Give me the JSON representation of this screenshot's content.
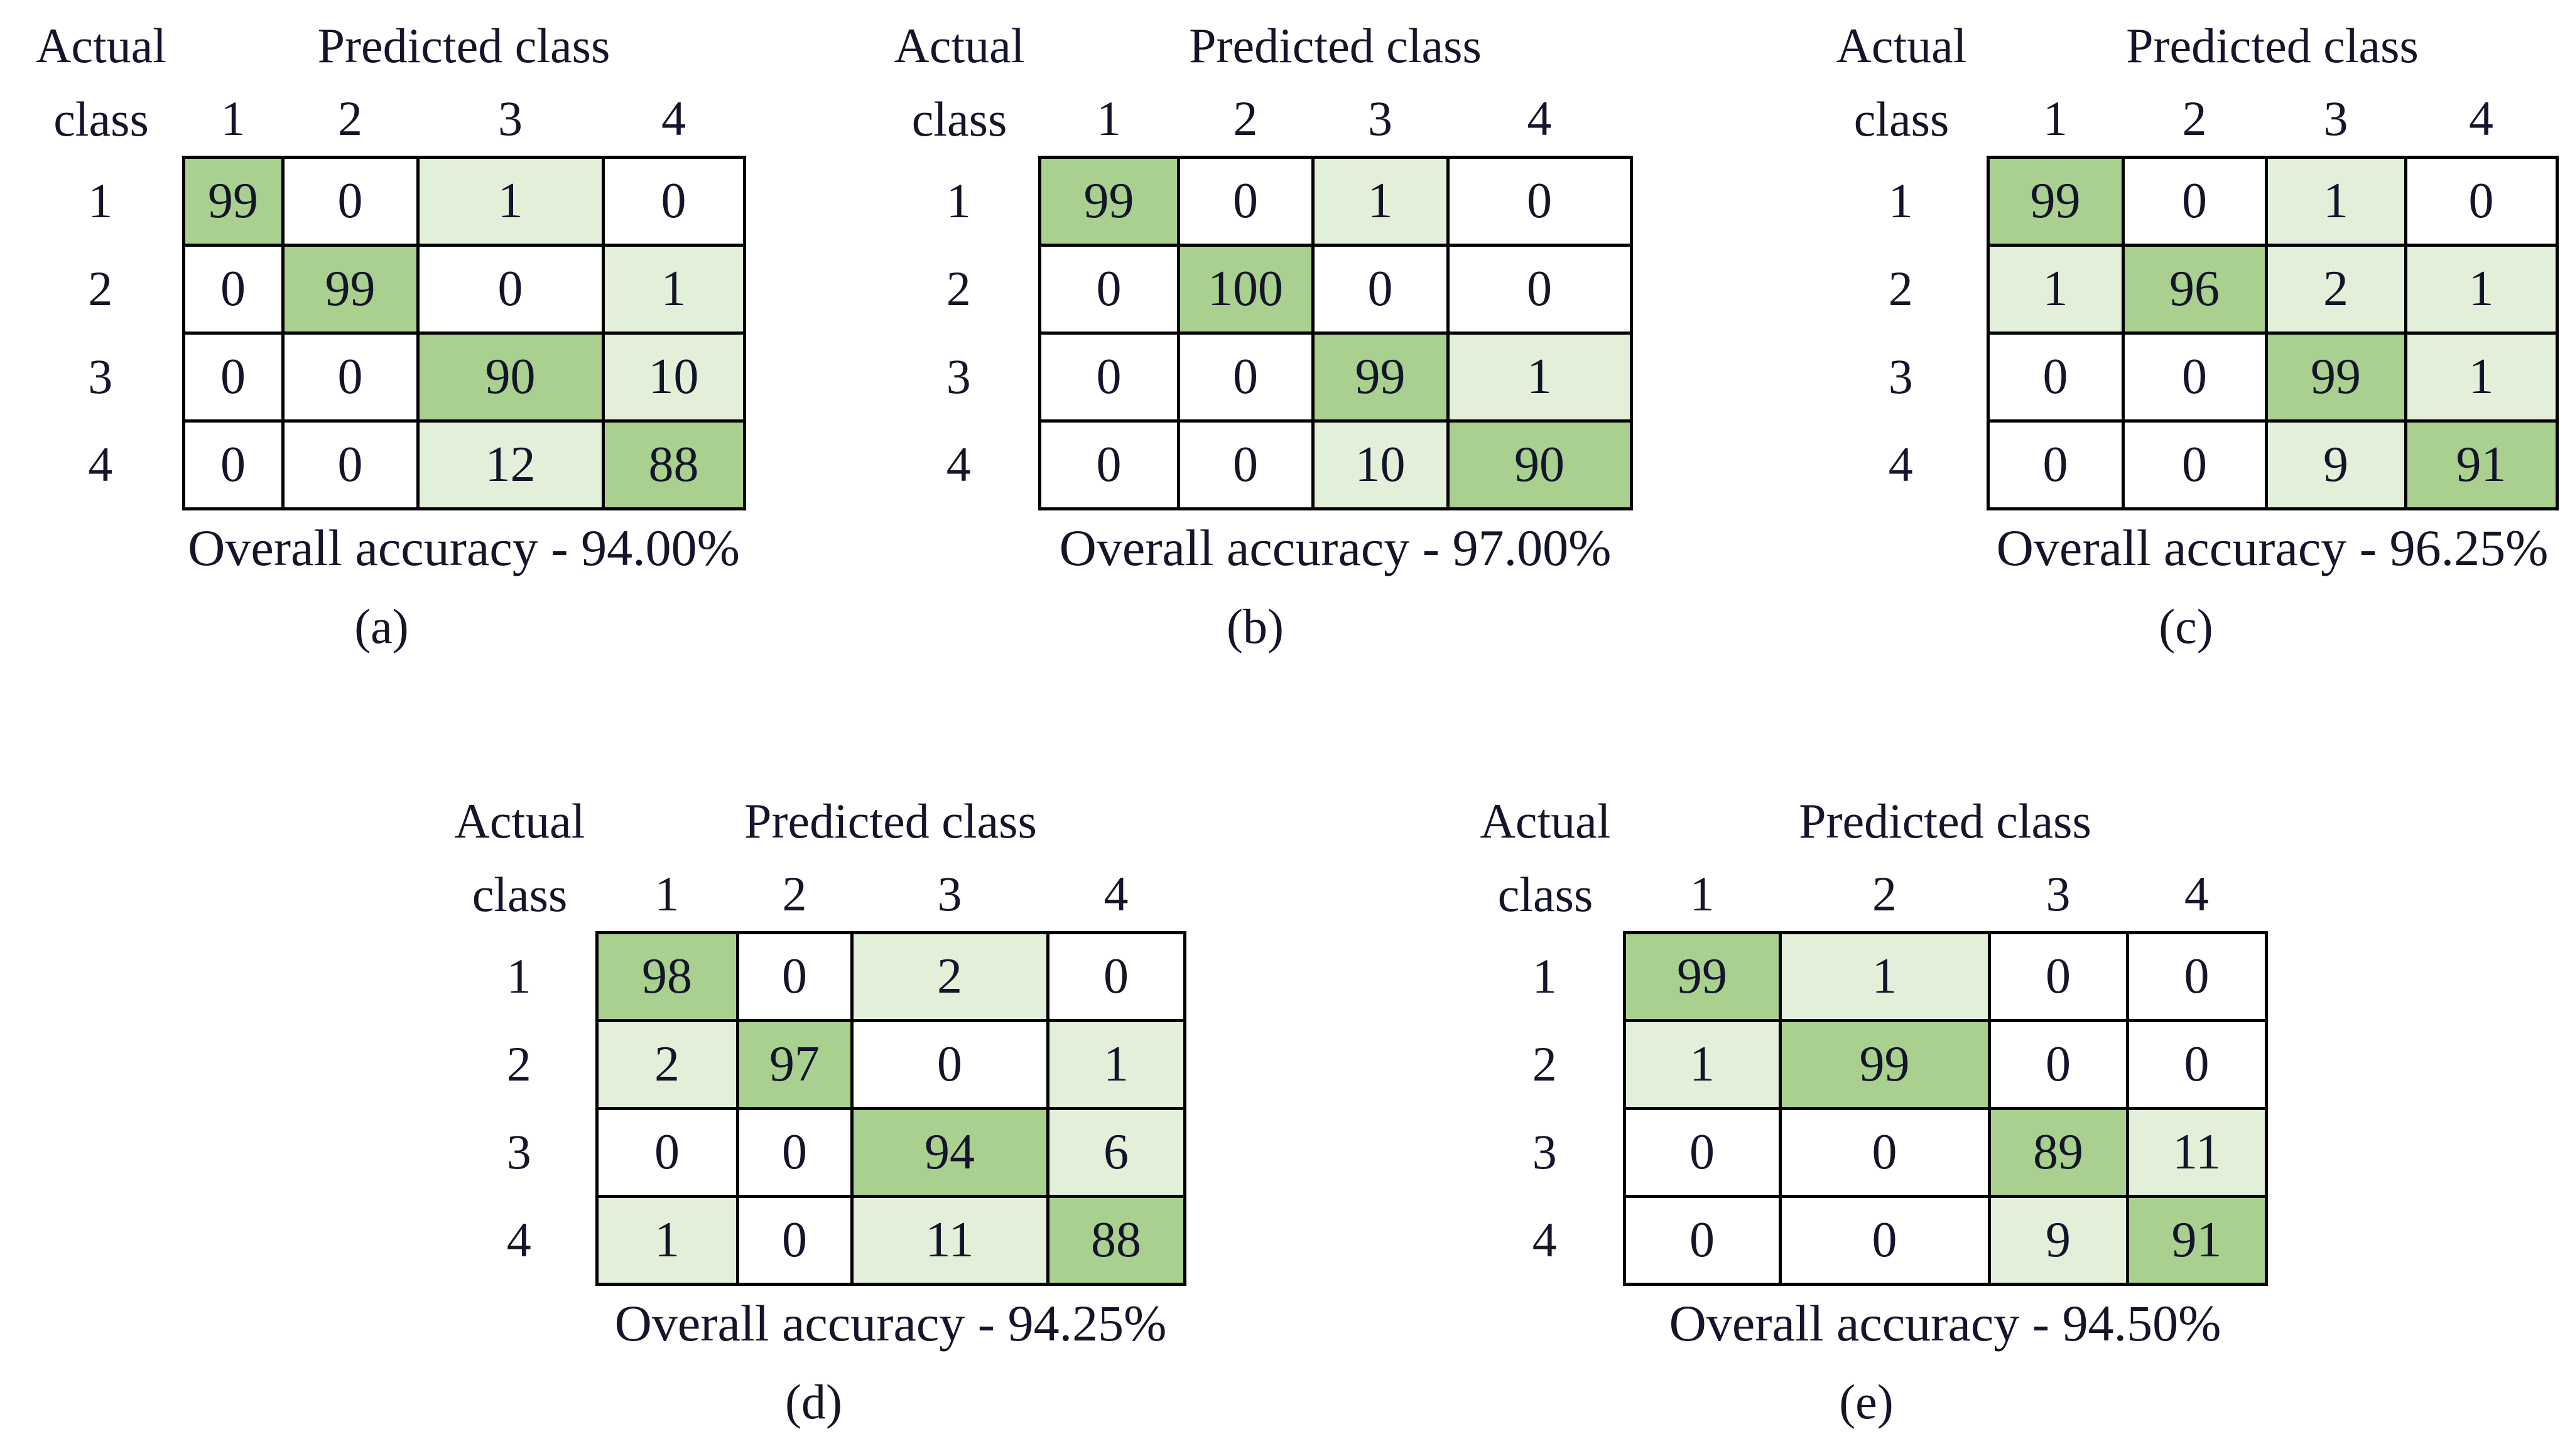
{
  "figure": {
    "labels": {
      "actual_line1": "Actual",
      "actual_line2": "class",
      "predicted": "Predicted class",
      "col_headers": [
        "1",
        "2",
        "3",
        "4"
      ],
      "row_headers": [
        "1",
        "2",
        "3",
        "4"
      ]
    },
    "colors": {
      "diagonal_fill": "#a9d08e",
      "offdiagonal_fill": "#e2efd9",
      "zero_fill": "#ffffff",
      "border": "#000000",
      "text": "#14142a"
    },
    "matrices": [
      {
        "panel_label": "(a)",
        "accuracy_label": "Overall accuracy - 94.00%",
        "rows": [
          [
            99,
            0,
            1,
            0
          ],
          [
            0,
            99,
            0,
            1
          ],
          [
            0,
            0,
            90,
            10
          ],
          [
            0,
            0,
            12,
            88
          ]
        ]
      },
      {
        "panel_label": "(b)",
        "accuracy_label": "Overall accuracy - 97.00%",
        "rows": [
          [
            99,
            0,
            1,
            0
          ],
          [
            0,
            100,
            0,
            0
          ],
          [
            0,
            0,
            99,
            1
          ],
          [
            0,
            0,
            10,
            90
          ]
        ]
      },
      {
        "panel_label": "(c)",
        "accuracy_label": "Overall accuracy - 96.25%",
        "rows": [
          [
            99,
            0,
            1,
            0
          ],
          [
            1,
            96,
            2,
            1
          ],
          [
            0,
            0,
            99,
            1
          ],
          [
            0,
            0,
            9,
            91
          ]
        ]
      },
      {
        "panel_label": "(d)",
        "accuracy_label": "Overall accuracy - 94.25%",
        "rows": [
          [
            98,
            0,
            2,
            0
          ],
          [
            2,
            97,
            0,
            1
          ],
          [
            0,
            0,
            94,
            6
          ],
          [
            1,
            0,
            11,
            88
          ]
        ]
      },
      {
        "panel_label": "(e)",
        "accuracy_label": "Overall accuracy - 94.50%",
        "rows": [
          [
            99,
            1,
            0,
            0
          ],
          [
            1,
            99,
            0,
            0
          ],
          [
            0,
            0,
            89,
            11
          ],
          [
            0,
            0,
            9,
            91
          ]
        ]
      }
    ]
  },
  "chart_data": [
    {
      "type": "heatmap",
      "panel": "(a)",
      "title": "Overall accuracy - 94.00%",
      "xlabel": "Predicted class",
      "ylabel": "Actual class",
      "x_categories": [
        "1",
        "2",
        "3",
        "4"
      ],
      "y_categories": [
        "1",
        "2",
        "3",
        "4"
      ],
      "values": [
        [
          99,
          0,
          1,
          0
        ],
        [
          0,
          99,
          0,
          1
        ],
        [
          0,
          0,
          90,
          10
        ],
        [
          0,
          0,
          12,
          88
        ]
      ],
      "legend": "off",
      "grid": "on"
    },
    {
      "type": "heatmap",
      "panel": "(b)",
      "title": "Overall accuracy - 97.00%",
      "xlabel": "Predicted class",
      "ylabel": "Actual class",
      "x_categories": [
        "1",
        "2",
        "3",
        "4"
      ],
      "y_categories": [
        "1",
        "2",
        "3",
        "4"
      ],
      "values": [
        [
          99,
          0,
          1,
          0
        ],
        [
          0,
          100,
          0,
          0
        ],
        [
          0,
          0,
          99,
          1
        ],
        [
          0,
          0,
          10,
          90
        ]
      ],
      "legend": "off",
      "grid": "on"
    },
    {
      "type": "heatmap",
      "panel": "(c)",
      "title": "Overall accuracy - 96.25%",
      "xlabel": "Predicted class",
      "ylabel": "Actual class",
      "x_categories": [
        "1",
        "2",
        "3",
        "4"
      ],
      "y_categories": [
        "1",
        "2",
        "3",
        "4"
      ],
      "values": [
        [
          99,
          0,
          1,
          0
        ],
        [
          1,
          96,
          2,
          1
        ],
        [
          0,
          0,
          99,
          1
        ],
        [
          0,
          0,
          9,
          91
        ]
      ],
      "legend": "off",
      "grid": "on"
    },
    {
      "type": "heatmap",
      "panel": "(d)",
      "title": "Overall accuracy - 94.25%",
      "xlabel": "Predicted class",
      "ylabel": "Actual class",
      "x_categories": [
        "1",
        "2",
        "3",
        "4"
      ],
      "y_categories": [
        "1",
        "2",
        "3",
        "4"
      ],
      "values": [
        [
          98,
          0,
          2,
          0
        ],
        [
          2,
          97,
          0,
          1
        ],
        [
          0,
          0,
          94,
          6
        ],
        [
          1,
          0,
          11,
          88
        ]
      ],
      "legend": "off",
      "grid": "on"
    },
    {
      "type": "heatmap",
      "panel": "(e)",
      "title": "Overall accuracy - 94.50%",
      "xlabel": "Predicted class",
      "ylabel": "Actual class",
      "x_categories": [
        "1",
        "2",
        "3",
        "4"
      ],
      "y_categories": [
        "1",
        "2",
        "3",
        "4"
      ],
      "values": [
        [
          99,
          1,
          0,
          0
        ],
        [
          1,
          99,
          0,
          0
        ],
        [
          0,
          0,
          89,
          11
        ],
        [
          0,
          0,
          9,
          91
        ]
      ],
      "legend": "off",
      "grid": "on"
    }
  ]
}
